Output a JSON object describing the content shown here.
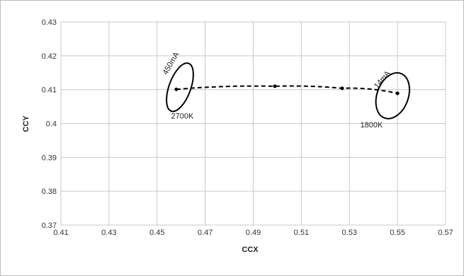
{
  "chart_data": {
    "type": "scatter",
    "title": "",
    "xlabel": "CCX",
    "ylabel": "CCY",
    "xlim": [
      0.41,
      0.57
    ],
    "ylim": [
      0.37,
      0.43
    ],
    "grid": true,
    "x_ticks": [
      "0.41",
      "0.43",
      "0.45",
      "0.47",
      "0.49",
      "0.51",
      "0.53",
      "0.55",
      "0.57"
    ],
    "y_ticks": [
      "0.43",
      "0.42",
      "0.41",
      "0.4",
      "0.39",
      "0.38",
      "0.37"
    ],
    "series": [
      {
        "style": "dashed-line-with-markers",
        "x": [
          0.458,
          0.499,
          0.527,
          0.55
        ],
        "y": [
          0.4101,
          0.411,
          0.4104,
          0.4089
        ]
      }
    ],
    "ellipses": [
      {
        "cx": 0.4595,
        "cy": 0.4107,
        "rx": 0.0045,
        "ry": 0.0075
      },
      {
        "cx": 0.548,
        "cy": 0.4082,
        "rx": 0.0065,
        "ry": 0.007
      }
    ],
    "annotations": [
      {
        "text": "450mA",
        "x": 0.4566,
        "y": 0.4174,
        "rotate": -60
      },
      {
        "text": "2700K",
        "x": 0.4605,
        "y": 0.4015,
        "rotate": 0
      },
      {
        "text": "14mA",
        "x": 0.5444,
        "y": 0.4125,
        "rotate": -50
      },
      {
        "text": "1800K",
        "x": 0.5392,
        "y": 0.3988,
        "rotate": 0
      }
    ]
  }
}
